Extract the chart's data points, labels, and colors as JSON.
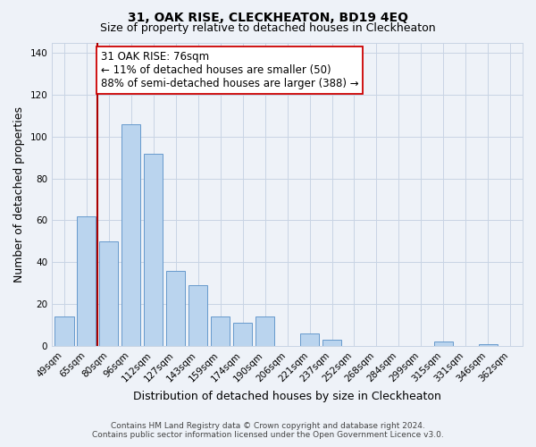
{
  "title": "31, OAK RISE, CLECKHEATON, BD19 4EQ",
  "subtitle": "Size of property relative to detached houses in Cleckheaton",
  "xlabel": "Distribution of detached houses by size in Cleckheaton",
  "ylabel": "Number of detached properties",
  "categories": [
    "49sqm",
    "65sqm",
    "80sqm",
    "96sqm",
    "112sqm",
    "127sqm",
    "143sqm",
    "159sqm",
    "174sqm",
    "190sqm",
    "206sqm",
    "221sqm",
    "237sqm",
    "252sqm",
    "268sqm",
    "284sqm",
    "299sqm",
    "315sqm",
    "331sqm",
    "346sqm",
    "362sqm"
  ],
  "values": [
    14,
    62,
    50,
    106,
    92,
    36,
    29,
    14,
    11,
    14,
    0,
    6,
    3,
    0,
    0,
    0,
    0,
    2,
    0,
    1,
    0
  ],
  "bar_color": "#bad4ee",
  "bar_edge_color": "#6699cc",
  "vline_color": "#aa0000",
  "vline_x_index": 1.5,
  "annotation_title": "31 OAK RISE: 76sqm",
  "annotation_line1": "← 11% of detached houses are smaller (50)",
  "annotation_line2": "88% of semi-detached houses are larger (388) →",
  "annotation_box_color": "#ffffff",
  "annotation_box_edge": "#cc0000",
  "ylim": [
    0,
    145
  ],
  "yticks": [
    0,
    20,
    40,
    60,
    80,
    100,
    120,
    140
  ],
  "footer_line1": "Contains HM Land Registry data © Crown copyright and database right 2024.",
  "footer_line2": "Contains public sector information licensed under the Open Government Licence v3.0.",
  "bg_color": "#eef2f8",
  "plot_bg_color": "#eef2f8",
  "grid_color": "#c8d4e4",
  "title_fontsize": 10,
  "subtitle_fontsize": 9,
  "axis_label_fontsize": 9,
  "tick_fontsize": 7.5,
  "annotation_fontsize": 8.5,
  "footer_fontsize": 6.5
}
